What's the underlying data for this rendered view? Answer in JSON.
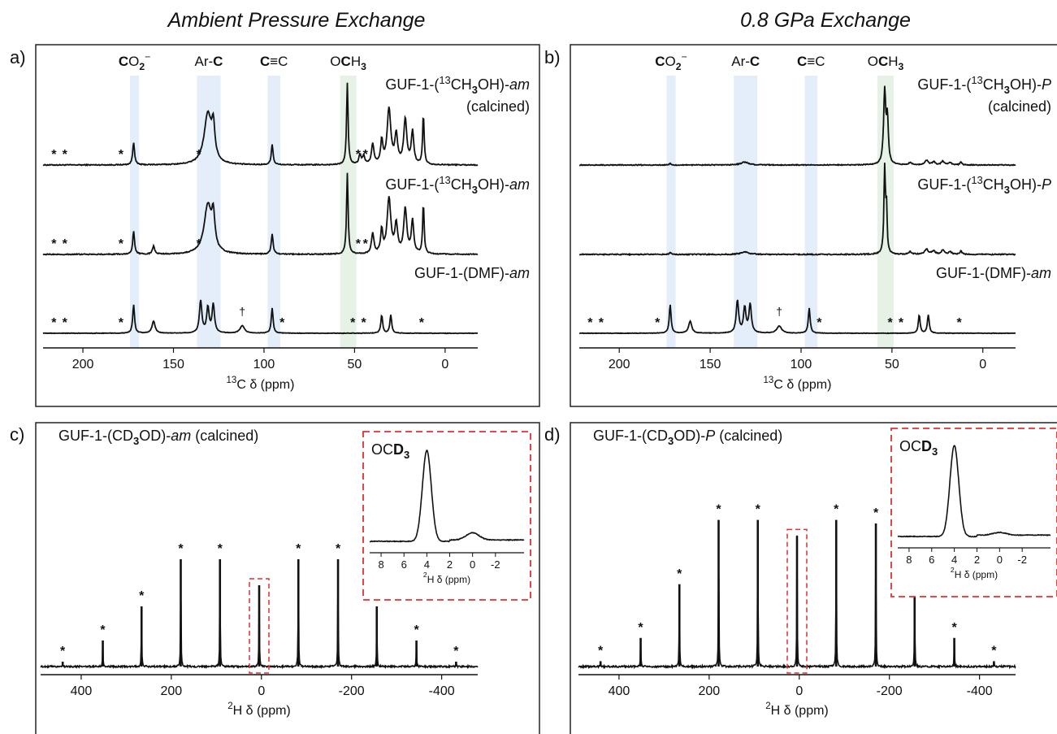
{
  "titles": {
    "left": "Ambient Pressure Exchange",
    "right": "0.8 GPa Exchange"
  },
  "chart_data": [
    {
      "panel": "a)",
      "type": "line",
      "nucleus": "13C",
      "xlabel": "13C δ (ppm)",
      "xlim": [
        222,
        -18
      ],
      "x_ticks": [
        200,
        150,
        100,
        50,
        0
      ],
      "highlight_regions": [
        {
          "label": "CO2−",
          "range": [
            174,
            169
          ],
          "color": "#e3eefa"
        },
        {
          "label": "Ar-C",
          "range": [
            137,
            124
          ],
          "color": "#e3eefa"
        },
        {
          "label": "C≡C",
          "range": [
            98,
            91
          ],
          "color": "#e3eefa"
        },
        {
          "label": "OCH3",
          "range": [
            58,
            49
          ],
          "color": "#e6f2e6"
        }
      ],
      "series": [
        {
          "name": "GUF-1-(13CH3OH)-am (calcined)",
          "peaks": [
            [
              172,
              28,
              0.6
            ],
            [
              131,
              62,
              2.5
            ],
            [
              128,
              38,
              1.0
            ],
            [
              95.5,
              25,
              0.6
            ],
            [
              54,
              100,
              0.5
            ],
            [
              40,
              25,
              0.8
            ],
            [
              35,
              28,
              0.7
            ],
            [
              31,
              68,
              1.2
            ],
            [
              27,
              35,
              0.9
            ],
            [
              22,
              55,
              1.0
            ],
            [
              18,
              40,
              0.8
            ],
            [
              12,
              62,
              0.5
            ],
            [
              47,
              12,
              0.7
            ],
            [
              45,
              10,
              0.7
            ]
          ],
          "spinning_sidebands": [
            216,
            210,
            179,
            136,
            48,
            44
          ]
        },
        {
          "name": "GUF-1-(13CH3OH)-am",
          "peaks": [
            [
              172,
              28,
              0.6
            ],
            [
              161,
              10,
              0.7
            ],
            [
              131,
              60,
              2.5
            ],
            [
              128,
              38,
              1.0
            ],
            [
              95.5,
              25,
              0.6
            ],
            [
              54,
              100,
              0.5
            ],
            [
              40,
              25,
              0.8
            ],
            [
              35,
              28,
              0.7
            ],
            [
              31,
              68,
              1.2
            ],
            [
              27,
              35,
              0.9
            ],
            [
              22,
              55,
              1.0
            ],
            [
              18,
              40,
              0.8
            ],
            [
              12,
              62,
              0.5
            ]
          ],
          "spinning_sidebands": [
            216,
            210,
            179,
            136,
            48,
            44
          ]
        },
        {
          "name": "GUF-1-(DMF)-am",
          "peaks": [
            [
              172,
              70,
              0.6
            ],
            [
              161,
              30,
              1.0
            ],
            [
              135,
              80,
              0.8
            ],
            [
              131,
              62,
              0.8
            ],
            [
              128,
              70,
              0.8
            ],
            [
              112,
              18,
              1.5
            ],
            [
              95.5,
              62,
              0.6
            ],
            [
              35,
              45,
              0.6
            ],
            [
              30,
              45,
              0.6
            ]
          ],
          "spinning_sidebands": [
            216,
            210,
            179,
            90,
            51,
            45,
            13
          ],
          "impurity_peaks": [
            112
          ]
        }
      ],
      "series_labels": [
        "GUF-1-(",
        "13",
        "CH",
        "3",
        "OH)-",
        "am",
        "(calcined)",
        "GUF-1-(DMF)-"
      ]
    },
    {
      "panel": "b)",
      "type": "line",
      "nucleus": "13C",
      "xlabel": "13C δ (ppm)",
      "xlim": [
        222,
        -18
      ],
      "x_ticks": [
        200,
        150,
        100,
        50,
        0
      ],
      "highlight_regions": [
        {
          "label": "CO2−",
          "range": [
            174,
            169
          ],
          "color": "#e3eefa"
        },
        {
          "label": "Ar-C",
          "range": [
            137,
            124
          ],
          "color": "#e3eefa"
        },
        {
          "label": "C≡C",
          "range": [
            98,
            91
          ],
          "color": "#e3eefa"
        },
        {
          "label": "OCH3",
          "range": [
            58,
            49
          ],
          "color": "#e6f2e6"
        }
      ],
      "series": [
        {
          "name": "GUF-1-(13CH3OH)-P (calcined)",
          "peaks": [
            [
              54,
              100,
              0.7
            ],
            [
              52.5,
              60,
              0.6
            ],
            [
              131,
              4,
              2.5
            ],
            [
              172,
              2,
              0.6
            ],
            [
              40,
              3,
              1.0
            ],
            [
              31,
              6,
              1.2
            ],
            [
              27,
              4,
              1.0
            ],
            [
              22,
              5,
              1.0
            ],
            [
              18,
              3,
              1.0
            ],
            [
              12,
              4,
              0.6
            ]
          ]
        },
        {
          "name": "GUF-1-(13CH3OH)-P",
          "peaks": [
            [
              54,
              100,
              0.5
            ],
            [
              53,
              50,
              0.4
            ],
            [
              131,
              3,
              2.5
            ],
            [
              172,
              2,
              0.6
            ],
            [
              40,
              3,
              1.0
            ],
            [
              31,
              6,
              1.2
            ],
            [
              27,
              4,
              1.0
            ],
            [
              22,
              5,
              1.0
            ],
            [
              18,
              3,
              1.0
            ],
            [
              12,
              4,
              0.6
            ]
          ]
        },
        {
          "name": "GUF-1-(DMF)-am",
          "peaks": [
            [
              172,
              70,
              0.6
            ],
            [
              161,
              30,
              1.0
            ],
            [
              135,
              80,
              0.8
            ],
            [
              131,
              62,
              0.8
            ],
            [
              128,
              70,
              0.8
            ],
            [
              112,
              18,
              1.5
            ],
            [
              95.5,
              62,
              0.6
            ],
            [
              35,
              45,
              0.6
            ],
            [
              30,
              45,
              0.6
            ]
          ],
          "spinning_sidebands": [
            216,
            210,
            179,
            90,
            51,
            45,
            13
          ],
          "impurity_peaks": [
            112
          ]
        }
      ],
      "series_labels": [
        "GUF-1-(",
        "13",
        "CH",
        "3",
        "OH)-",
        "P",
        "(calcined)",
        "GUF-1-(DMF)-",
        "am"
      ]
    },
    {
      "panel": "c)",
      "type": "line",
      "nucleus": "2H",
      "title": [
        "GUF-1-(CD",
        "3",
        "OD)-",
        "am",
        " (calcined)"
      ],
      "xlabel": "2H δ (ppm)",
      "xlim": [
        490,
        -480
      ],
      "x_ticks": [
        400,
        200,
        0,
        -200,
        -400
      ],
      "peaks": [
        [
          441,
          3
        ],
        [
          352,
          16
        ],
        [
          266,
          37
        ],
        [
          179,
          66
        ],
        [
          92,
          66
        ],
        [
          5,
          50
        ],
        [
          -82,
          66
        ],
        [
          -170,
          66
        ],
        [
          -256,
          37
        ],
        [
          -344,
          16
        ],
        [
          -432,
          3
        ]
      ],
      "spinning_sidebands": [
        441,
        352,
        266,
        179,
        92,
        -82,
        -170,
        -256,
        -344,
        -432
      ],
      "inset": {
        "label": [
          "OC",
          "D",
          "3"
        ],
        "xlabel": "2H δ (ppm)",
        "xlim": [
          9,
          -4.5
        ],
        "x_ticks": [
          8,
          6,
          4,
          2,
          0,
          -2
        ],
        "peaks": [
          [
            4.0,
            100,
            0.55
          ],
          [
            0,
            8,
            0.8
          ]
        ]
      }
    },
    {
      "panel": "d)",
      "type": "line",
      "nucleus": "2H",
      "title": [
        "GUF-1-(CD",
        "3",
        "OD)-",
        "P",
        " (calcined)"
      ],
      "xlabel": "2H δ (ppm)",
      "xlim": [
        490,
        -480
      ],
      "x_ticks": [
        400,
        200,
        0,
        -200,
        -400
      ],
      "peaks": [
        [
          441,
          3
        ],
        [
          352,
          16
        ],
        [
          266,
          46
        ],
        [
          179,
          82
        ],
        [
          92,
          82
        ],
        [
          5,
          73
        ],
        [
          -82,
          82
        ],
        [
          -170,
          80
        ],
        [
          -256,
          46
        ],
        [
          -344,
          16
        ],
        [
          -432,
          3
        ]
      ],
      "spinning_sidebands": [
        441,
        352,
        266,
        179,
        92,
        -82,
        -170,
        -256,
        -344,
        -432
      ],
      "inset": {
        "label": [
          "OC",
          "D",
          "3"
        ],
        "xlabel": "2H δ (ppm)",
        "xlim": [
          9,
          -4.5
        ],
        "x_ticks": [
          8,
          6,
          4,
          2,
          0,
          -2
        ],
        "peaks": [
          [
            4.0,
            100,
            0.55
          ],
          [
            0,
            3,
            0.8
          ]
        ]
      }
    }
  ]
}
